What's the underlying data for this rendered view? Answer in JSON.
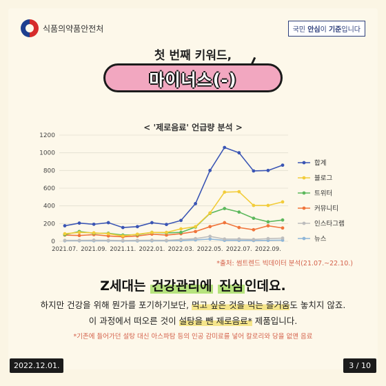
{
  "header": {
    "org_name": "식품의약품안전처",
    "slogan_prefix": "국민 ",
    "slogan_bold1": "안심",
    "slogan_mid": "이 ",
    "slogan_bold2": "기준",
    "slogan_suffix": "입니다"
  },
  "kicker": "첫 번째 키워드,",
  "keyword": "마이너스(-)",
  "chart_title": "< '제로음료' 언급량 분석 >",
  "source": "*출처: 썸트렌드 빅데이터 분석(21.07.~22.10.)",
  "headline": {
    "pre": "Z세대는 ",
    "hl1": "건강관리에",
    "hl2": "진심",
    "post": "인데요."
  },
  "body": {
    "line1_pre": "하지만 건강을 위해 뭔가를 포기하기보단, ",
    "line1_hl": "먹고 싶은 것을 먹는 즐거움",
    "line1_post": "도 놓치지 않죠.",
    "line2_pre": "이 과정에서 떠오른 것이 ",
    "line2_hl": "설탕을 뺀 제로음료*",
    "line2_post": " 제품입니다."
  },
  "footnote": "*기존에 들어가던 설탕 대신 아스파탐 등의 인공 감미료를 넣어 칼로리와 당을 없앤 음료",
  "footer": {
    "date": "2022.12.01.",
    "page": "3 / 10"
  },
  "chart_data": {
    "type": "line",
    "title": "< '제로음료' 언급량 분석 >",
    "x": [
      "2021.07.",
      "2021.08.",
      "2021.09.",
      "2021.10.",
      "2021.11.",
      "2021.12.",
      "2022.01.",
      "2022.02.",
      "2022.03.",
      "2022.04.",
      "2022.05.",
      "2022.06.",
      "2022.07.",
      "2022.08.",
      "2022.09.",
      "2022.10."
    ],
    "x_tick_labels": [
      "2021.07.",
      "2021.09.",
      "2021.11.",
      "2022.01.",
      "2022.03.",
      "2022.05.",
      "2022.07.",
      "2022.09."
    ],
    "ylim": [
      0,
      1200
    ],
    "yticks": [
      0,
      200,
      400,
      600,
      800,
      1000,
      1200
    ],
    "grid": true,
    "legend_position": "right",
    "series": [
      {
        "name": "합계",
        "color": "#3a55b4",
        "values": [
          175,
          205,
          192,
          210,
          155,
          165,
          210,
          190,
          235,
          425,
          800,
          1060,
          1000,
          795,
          800,
          860
        ]
      },
      {
        "name": "블로그",
        "color": "#f2cc3a",
        "values": [
          85,
          100,
          95,
          85,
          60,
          80,
          100,
          100,
          140,
          165,
          320,
          555,
          560,
          405,
          405,
          445
        ]
      },
      {
        "name": "트위터",
        "color": "#5cb85c",
        "values": [
          75,
          110,
          90,
          90,
          70,
          75,
          100,
          95,
          100,
          160,
          315,
          370,
          330,
          260,
          220,
          240
        ]
      },
      {
        "name": "커뮤니티",
        "color": "#f0743a",
        "values": [
          70,
          65,
          75,
          60,
          50,
          60,
          80,
          70,
          85,
          110,
          165,
          210,
          155,
          130,
          175,
          150
        ]
      },
      {
        "name": "인스타그램",
        "color": "#bdbdbd",
        "values": [
          10,
          10,
          12,
          10,
          8,
          10,
          12,
          10,
          20,
          30,
          55,
          25,
          25,
          20,
          30,
          35
        ]
      },
      {
        "name": "뉴스",
        "color": "#8fb6d8",
        "values": [
          5,
          5,
          5,
          5,
          3,
          4,
          5,
          5,
          8,
          15,
          25,
          10,
          10,
          8,
          10,
          12
        ]
      }
    ]
  }
}
